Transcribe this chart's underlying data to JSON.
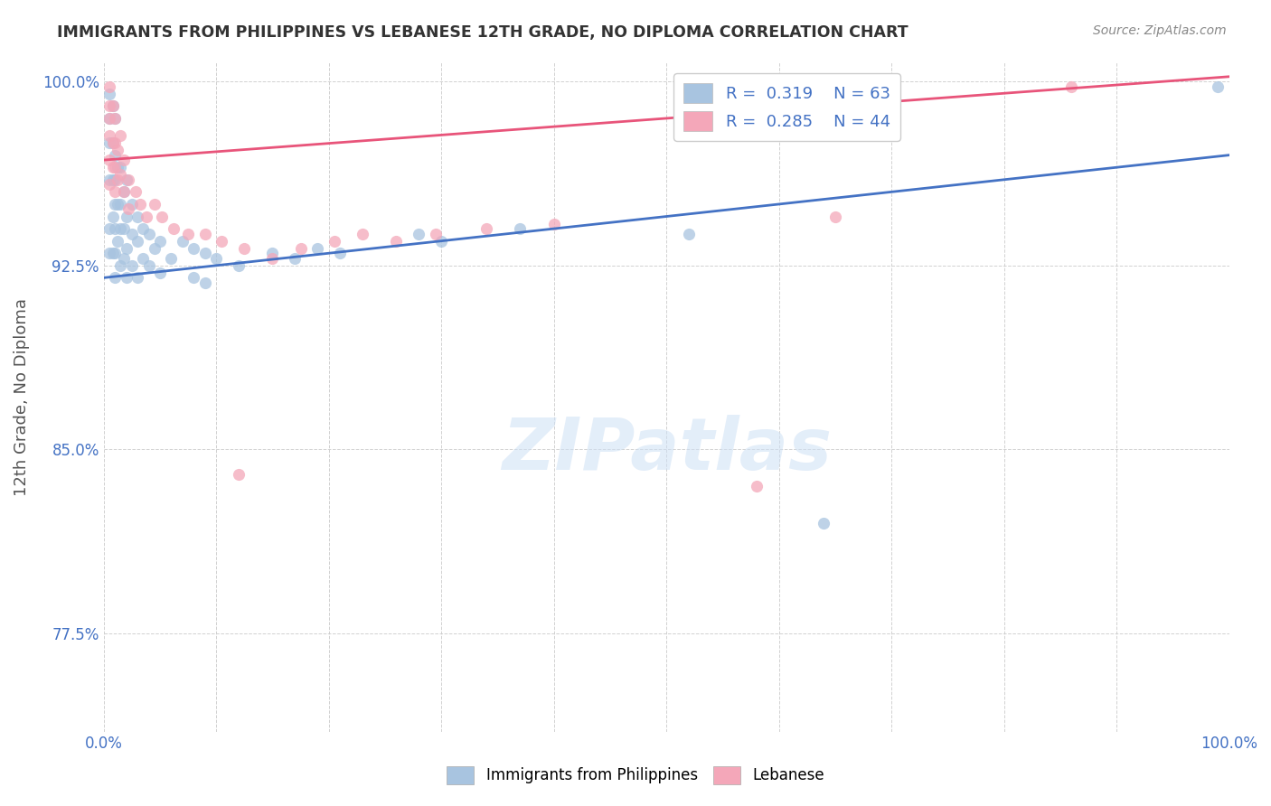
{
  "title": "IMMIGRANTS FROM PHILIPPINES VS LEBANESE 12TH GRADE, NO DIPLOMA CORRELATION CHART",
  "source": "Source: ZipAtlas.com",
  "xlabel": "",
  "ylabel": "12th Grade, No Diploma",
  "xlim": [
    0.0,
    1.0
  ],
  "ylim": [
    0.735,
    1.008
  ],
  "yticks": [
    0.775,
    0.85,
    0.925,
    1.0
  ],
  "ytick_labels": [
    "77.5%",
    "85.0%",
    "92.5%",
    "100.0%"
  ],
  "xticks": [
    0.0,
    0.1,
    0.2,
    0.3,
    0.4,
    0.5,
    0.6,
    0.7,
    0.8,
    0.9,
    1.0
  ],
  "xtick_labels": [
    "0.0%",
    "",
    "",
    "",
    "",
    "",
    "",
    "",
    "",
    "",
    "100.0%"
  ],
  "philippines_color": "#a8c4e0",
  "lebanese_color": "#f4a7b9",
  "philippines_line_color": "#4472c4",
  "lebanese_line_color": "#e8547a",
  "r_philippines": 0.319,
  "n_philippines": 63,
  "r_lebanese": 0.285,
  "n_lebanese": 44,
  "legend_label_1": "Immigrants from Philippines",
  "legend_label_2": "Lebanese",
  "title_color": "#333333",
  "axis_label_color": "#4472c4",
  "watermark": "ZIPatlas",
  "philippines_line_y0": 0.92,
  "philippines_line_y1": 0.97,
  "lebanese_line_y0": 0.968,
  "lebanese_line_y1": 1.002,
  "philippines_x": [
    0.005,
    0.005,
    0.005,
    0.005,
    0.005,
    0.005,
    0.008,
    0.008,
    0.008,
    0.008,
    0.008,
    0.01,
    0.01,
    0.01,
    0.01,
    0.01,
    0.01,
    0.01,
    0.012,
    0.012,
    0.012,
    0.015,
    0.015,
    0.015,
    0.015,
    0.018,
    0.018,
    0.018,
    0.02,
    0.02,
    0.02,
    0.02,
    0.025,
    0.025,
    0.025,
    0.03,
    0.03,
    0.03,
    0.035,
    0.035,
    0.04,
    0.04,
    0.045,
    0.05,
    0.05,
    0.06,
    0.07,
    0.08,
    0.08,
    0.09,
    0.09,
    0.1,
    0.12,
    0.15,
    0.17,
    0.19,
    0.21,
    0.28,
    0.3,
    0.37,
    0.52,
    0.99,
    0.64
  ],
  "philippines_y": [
    0.995,
    0.985,
    0.975,
    0.96,
    0.94,
    0.93,
    0.99,
    0.975,
    0.96,
    0.945,
    0.93,
    0.985,
    0.97,
    0.96,
    0.95,
    0.94,
    0.93,
    0.92,
    0.965,
    0.95,
    0.935,
    0.965,
    0.95,
    0.94,
    0.925,
    0.955,
    0.94,
    0.928,
    0.96,
    0.945,
    0.932,
    0.92,
    0.95,
    0.938,
    0.925,
    0.945,
    0.935,
    0.92,
    0.94,
    0.928,
    0.938,
    0.925,
    0.932,
    0.935,
    0.922,
    0.928,
    0.935,
    0.932,
    0.92,
    0.93,
    0.918,
    0.928,
    0.925,
    0.93,
    0.928,
    0.932,
    0.93,
    0.938,
    0.935,
    0.94,
    0.938,
    0.998,
    0.82
  ],
  "lebanese_x": [
    0.005,
    0.005,
    0.005,
    0.005,
    0.005,
    0.005,
    0.008,
    0.008,
    0.008,
    0.01,
    0.01,
    0.01,
    0.01,
    0.012,
    0.012,
    0.015,
    0.015,
    0.018,
    0.018,
    0.022,
    0.022,
    0.028,
    0.032,
    0.038,
    0.045,
    0.052,
    0.062,
    0.075,
    0.09,
    0.105,
    0.125,
    0.15,
    0.175,
    0.205,
    0.23,
    0.26,
    0.295,
    0.34,
    0.4,
    0.7,
    0.86,
    0.65,
    0.58,
    0.12
  ],
  "lebanese_y": [
    0.998,
    0.99,
    0.985,
    0.978,
    0.968,
    0.958,
    0.99,
    0.975,
    0.965,
    0.985,
    0.975,
    0.965,
    0.955,
    0.972,
    0.96,
    0.978,
    0.962,
    0.968,
    0.955,
    0.96,
    0.948,
    0.955,
    0.95,
    0.945,
    0.95,
    0.945,
    0.94,
    0.938,
    0.938,
    0.935,
    0.932,
    0.928,
    0.932,
    0.935,
    0.938,
    0.935,
    0.938,
    0.94,
    0.942,
    0.998,
    0.998,
    0.945,
    0.835,
    0.84
  ]
}
